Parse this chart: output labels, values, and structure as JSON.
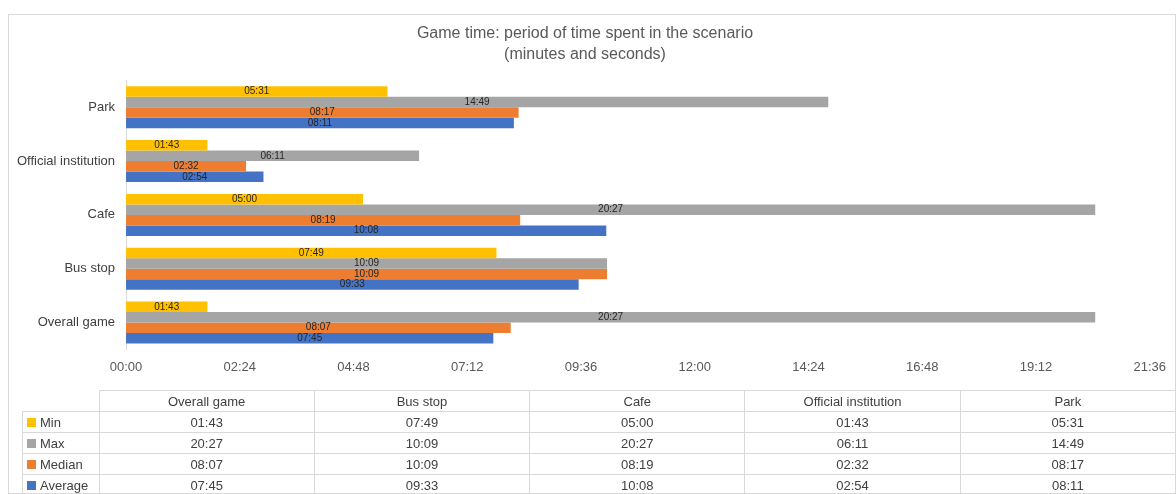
{
  "chart_data": {
    "type": "bar",
    "orientation": "horizontal",
    "title": "Game time: period of time spent in the scenario",
    "subtitle": "(minutes and seconds)",
    "categories": [
      "Park",
      "Official institution",
      "Cafe",
      "Bus stop",
      "Overall game"
    ],
    "series": [
      {
        "name": "Min",
        "color": "#ffc000",
        "values": [
          331,
          103,
          300,
          469,
          103
        ],
        "value_labels": [
          "05:31",
          "01:43",
          "05:00",
          "07:49",
          "01:43"
        ]
      },
      {
        "name": "Max",
        "color": "#a5a5a5",
        "values": [
          889,
          371,
          1227,
          609,
          1227
        ],
        "value_labels": [
          "14:49",
          "06:11",
          "20:27",
          "10:09",
          "20:27"
        ]
      },
      {
        "name": "Median",
        "color": "#ed7d31",
        "values": [
          497,
          152,
          499,
          609,
          487
        ],
        "value_labels": [
          "08:17",
          "02:32",
          "08:19",
          "10:09",
          "08:07"
        ]
      },
      {
        "name": "Average",
        "color": "#4472c4",
        "values": [
          491,
          174,
          608,
          573,
          465
        ],
        "value_labels": [
          "08:11",
          "02:54",
          "10:08",
          "09:33",
          "07:45"
        ]
      }
    ],
    "xlim": [
      0,
      1296
    ],
    "xticks": [
      {
        "value": 0,
        "label": "00:00"
      },
      {
        "value": 144,
        "label": "02:24"
      },
      {
        "value": 288,
        "label": "04:48"
      },
      {
        "value": 432,
        "label": "07:12"
      },
      {
        "value": 576,
        "label": "09:36"
      },
      {
        "value": 720,
        "label": "12:00"
      },
      {
        "value": 864,
        "label": "14:24"
      },
      {
        "value": 1008,
        "label": "16:48"
      },
      {
        "value": 1152,
        "label": "19:12"
      },
      {
        "value": 1296,
        "label": "21:36"
      }
    ],
    "legend": "bottom",
    "grid": false
  }
}
